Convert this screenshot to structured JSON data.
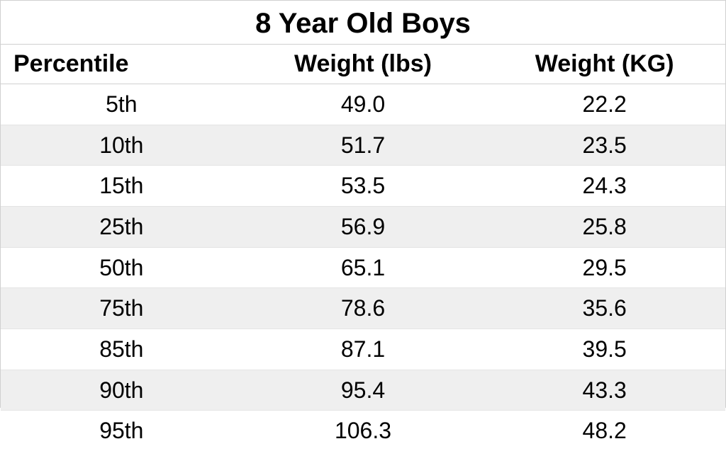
{
  "table": {
    "type": "table",
    "title": "8 Year Old Boys",
    "title_fontsize": 40,
    "header_fontsize": 34,
    "cell_fontsize": 32,
    "background_color": "#ffffff",
    "stripe_color": "#efefef",
    "border_color": "#d0d0d0",
    "row_border_color": "#e4e4e4",
    "text_color": "#000000",
    "columns": [
      {
        "label": "Percentile",
        "align": "left",
        "header_align": "left"
      },
      {
        "label": "Weight (lbs)",
        "align": "center",
        "header_align": "center"
      },
      {
        "label": "Weight (KG)",
        "align": "center",
        "header_align": "center"
      }
    ],
    "rows": [
      [
        "5th",
        "49.0",
        "22.2"
      ],
      [
        "10th",
        "51.7",
        "23.5"
      ],
      [
        "15th",
        "53.5",
        "24.3"
      ],
      [
        "25th",
        "56.9",
        "25.8"
      ],
      [
        "50th",
        "65.1",
        "29.5"
      ],
      [
        "75th",
        "78.6",
        "35.6"
      ],
      [
        "85th",
        "87.1",
        "39.5"
      ],
      [
        "90th",
        "95.4",
        "43.3"
      ],
      [
        "95th",
        "106.3",
        "48.2"
      ]
    ]
  }
}
